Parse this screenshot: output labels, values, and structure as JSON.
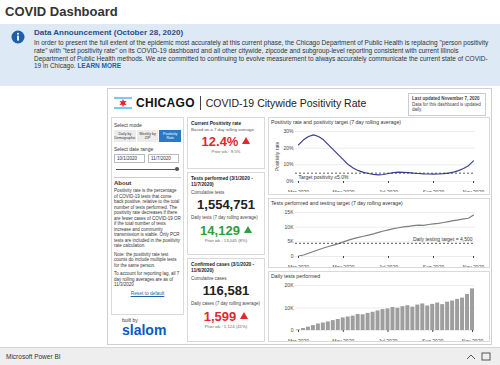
{
  "header": {
    "title": "COVID Dashboard"
  },
  "announcement": {
    "title": "Data Announcement (October 28, 2020)",
    "text": "In order to present the full extent of the epidemic most accurately at this current phase, the Chicago Department of Public Health is replacing \"person positivity rate\" with \"test positivity rate\" on its COVID-19 dashboard and all other citywide, zipcode and subgroup-level reporting consistent with current Illinois Department of Public Health methods. We are committed to continuing to evolve measurement to always accurately communicate the current state of COVID-19 in Chicago.",
    "link": "LEARN MORE"
  },
  "dashboard": {
    "brand": "CHICAGO",
    "title": "COVID-19 Citywide Positivity Rate",
    "updated": "Last updated November 7, 2020",
    "update_note": "Data for this dashboard is updated daily.",
    "sidebar": {
      "mode_label": "Select mode",
      "modes": [
        "Daily by Demographic",
        "Weekly by ZIP",
        "Positivity Rate"
      ],
      "active_mode": "Positivity Rate",
      "date_label": "Select date range",
      "date_from": "10/1/2020",
      "date_to": "11/7/2020",
      "about_title": "About",
      "about": [
        "Positivity rate is the percentage of COVID-19 tests that come back positive, relative to the total number of tests performed. The positivity rate decreases if there are fewer cases of COVID-19 OR if the total number of tests increase and community transmission is stable. Only PCR tests are included in the positivity rate calculation.",
        "Note: the positivity rate test counts do include multiple tests for the same person.",
        "To account for reporting lag, all 7 day rolling averages are as of 11/3/2020"
      ],
      "reset": "Reset to default"
    },
    "kpis": [
      {
        "title": "Current Positivity rate",
        "subtitle": "Based on a 7 day rolling average",
        "metrics": [
          {
            "value": "12.4%",
            "trend": "up",
            "color": "#e0282e",
            "prior": "Prior wk.: 9.5%"
          }
        ]
      },
      {
        "title": "Tests performed (3/1/2020 - 11/7/2020)",
        "metrics": [
          {
            "label": "Cumulative tests",
            "value": "1,554,751"
          },
          {
            "label": "Daily tests (7 day rolling average)",
            "value": "14,129",
            "trend": "up",
            "color": "#2e9e3e",
            "prior": "Prior wk.: 13,045 (8%)"
          }
        ]
      },
      {
        "title": "Confirmed cases (3/1/2020 - 11/6/2020)",
        "metrics": [
          {
            "label": "Cumulative cases",
            "value": "116,581"
          },
          {
            "label": "Daily cases (7 day rolling average)",
            "value": "1,599",
            "trend": "up",
            "color": "#e0282e",
            "prior": "Prior wk.: 1,124 (41%)"
          }
        ]
      }
    ],
    "built_by": "built by",
    "builder": "slalom"
  },
  "footer": {
    "text": "Microsoft Power BI"
  },
  "chart_data": [
    {
      "type": "line",
      "title": "Positivity rate and positivity target (7 day rolling average)",
      "y_label": "Positivity rate",
      "categories": [
        "Mar 2020",
        null,
        null,
        null,
        null,
        null,
        null,
        null,
        null,
        "May 2020",
        null,
        null,
        null,
        null,
        null,
        null,
        null,
        null,
        "Jul 2020",
        null,
        null,
        null,
        null,
        null,
        null,
        null,
        null,
        "Sep 2020",
        null,
        null,
        null,
        null,
        null,
        null,
        null,
        "Nov 2020"
      ],
      "values": [
        22,
        25,
        27,
        28,
        27,
        25,
        22,
        19,
        16,
        13,
        10,
        8,
        6.5,
        5.5,
        4.8,
        4.3,
        4,
        4.2,
        4.8,
        5.3,
        5.6,
        5.5,
        5.3,
        5,
        4.8,
        4.6,
        4.5,
        4.4,
        4.5,
        4.7,
        5,
        5.6,
        6.5,
        7.8,
        9.5,
        12.4
      ],
      "color": "#3a3f8f",
      "ylim": [
        0,
        30
      ],
      "yticks": [
        {
          "value": 0,
          "label": "0%"
        },
        {
          "value": 10,
          "label": "10%"
        },
        {
          "value": 20,
          "label": "20%"
        },
        {
          "value": 30,
          "label": "30%"
        }
      ],
      "grid": true,
      "target": 5,
      "annotation": "Target positivity ≤5.0%"
    },
    {
      "type": "line",
      "title": "Tests performed and testing target (7 day rolling average)",
      "categories": [
        "Mar 2020",
        null,
        null,
        null,
        null,
        null,
        null,
        null,
        null,
        "May 2020",
        null,
        null,
        null,
        null,
        null,
        null,
        null,
        null,
        "Jul 2020",
        null,
        null,
        null,
        null,
        null,
        null,
        null,
        null,
        "Sep 2020",
        null,
        null,
        null,
        null,
        null,
        null,
        null,
        "Nov 2020"
      ],
      "values": [
        150,
        500,
        1100,
        1700,
        2300,
        2900,
        3400,
        3900,
        4400,
        5000,
        5600,
        6100,
        6500,
        6900,
        7300,
        7700,
        8200,
        8700,
        9100,
        9500,
        9800,
        10100,
        10300,
        10500,
        10700,
        10600,
        10900,
        11100,
        11300,
        11600,
        11900,
        12200,
        12500,
        12800,
        13045,
        14129
      ],
      "color": "#7f7f7f",
      "ylim": [
        0,
        15000
      ],
      "yticks": [
        0,
        {
          "value": 5000,
          "label": "5K"
        },
        {
          "value": 10000,
          "label": "10K"
        },
        {
          "value": 15000,
          "label": "15K"
        }
      ],
      "grid": true,
      "target": 4500,
      "annotation": "Daily testing target = 4,500"
    },
    {
      "type": "bar",
      "title": "Daily tests performed",
      "categories": [
        "Mar 2020",
        null,
        null,
        null,
        null,
        null,
        null,
        null,
        null,
        "May 2020",
        null,
        null,
        null,
        null,
        null,
        null,
        null,
        null,
        "Jul 2020",
        null,
        null,
        null,
        null,
        null,
        null,
        null,
        null,
        "Sep 2020",
        null,
        null,
        null,
        null,
        null,
        null,
        null,
        "Nov 2020"
      ],
      "values": [
        300,
        900,
        1500,
        2200,
        2900,
        3300,
        3800,
        4400,
        4900,
        5600,
        6000,
        6400,
        7100,
        7000,
        7600,
        8100,
        8700,
        9300,
        9600,
        10200,
        9900,
        10600,
        11000,
        10400,
        11300,
        11800,
        10900,
        11600,
        12200,
        11500,
        12600,
        13100,
        13800,
        14400,
        16000,
        18500
      ],
      "color": "#9e9e9e",
      "ylim": [
        0,
        20000
      ],
      "yticks": [
        0,
        {
          "value": 10000,
          "label": "10K"
        },
        {
          "value": 20000,
          "label": "20K"
        }
      ],
      "grid": true
    }
  ]
}
